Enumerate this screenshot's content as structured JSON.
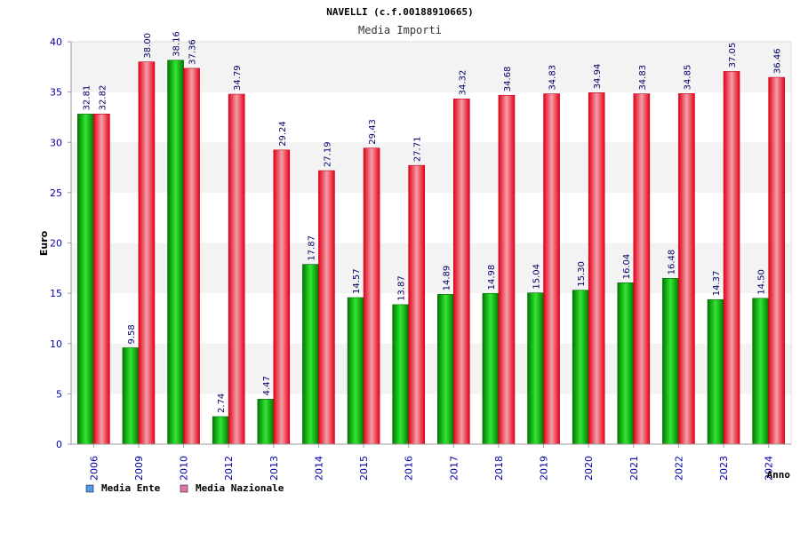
{
  "chart_data": {
    "type": "bar",
    "title": "NAVELLI (c.f.00188910665)",
    "subtitle": "Media Importi",
    "xlabel": "Anno",
    "ylabel": "Euro",
    "ylim": [
      0,
      40
    ],
    "yticks": [
      "0",
      "5",
      "10",
      "15",
      "20",
      "25",
      "30",
      "35",
      "40"
    ],
    "grid": true,
    "legend_position": "bottom-left",
    "categories": [
      "2006",
      "2009",
      "2010",
      "2012",
      "2013",
      "2014",
      "2015",
      "2016",
      "2017",
      "2018",
      "2019",
      "2020",
      "2021",
      "2022",
      "2023",
      "2024"
    ],
    "series": [
      {
        "name": "Media Ente",
        "legend_color": "#5599ee",
        "bar_color": "#00bb00",
        "values": [
          32.81,
          9.58,
          38.16,
          2.74,
          4.47,
          17.87,
          14.57,
          13.87,
          14.89,
          14.98,
          15.04,
          15.3,
          16.04,
          16.48,
          14.37,
          14.5
        ],
        "labels": [
          "32.81",
          "9.58",
          "38.16",
          "2.74",
          "4.47",
          "17.87",
          "14.57",
          "13.87",
          "14.89",
          "14.98",
          "15.04",
          "15.30",
          "16.04",
          "16.48",
          "14.37",
          "14.50"
        ]
      },
      {
        "name": "Media Nazionale",
        "legend_color": "#dd77aa",
        "bar_color": "#ee1122",
        "values": [
          32.82,
          38.0,
          37.36,
          34.79,
          29.24,
          27.19,
          29.43,
          27.71,
          34.32,
          34.68,
          34.83,
          34.94,
          34.83,
          34.85,
          37.05,
          36.46
        ],
        "labels": [
          "32.82",
          "38.00",
          "37.36",
          "34.79",
          "29.24",
          "27.19",
          "29.43",
          "27.71",
          "34.32",
          "34.68",
          "34.83",
          "34.94",
          "34.83",
          "34.85",
          "37.05",
          "36.46"
        ]
      }
    ]
  }
}
